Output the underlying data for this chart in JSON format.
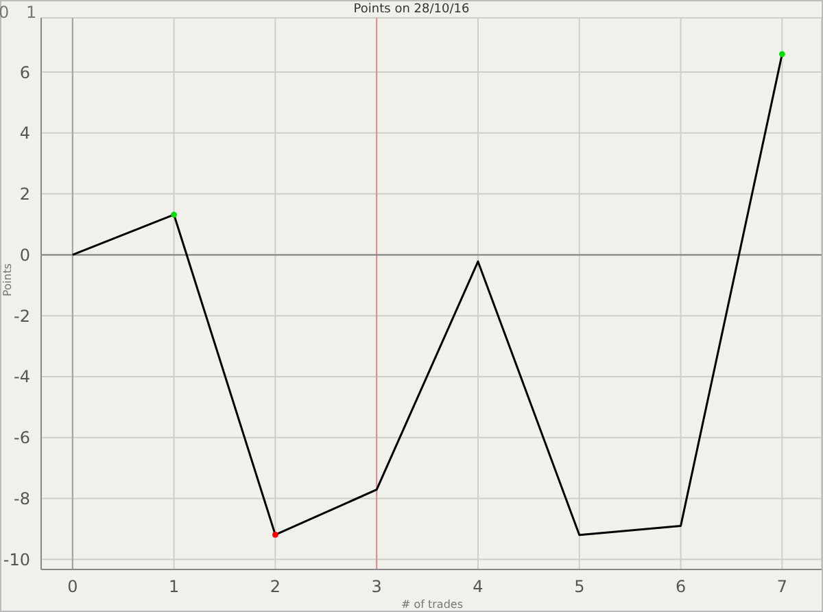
{
  "chart_data": {
    "type": "line",
    "title": "Points on 28/10/16",
    "xlabel": "# of trades",
    "ylabel": "Points",
    "annotations": [
      "0",
      "1"
    ],
    "series": [
      {
        "color": "#000000",
        "x": [
          0,
          1,
          2,
          3,
          4,
          5,
          6,
          7
        ],
        "values": [
          0,
          1.32,
          -9.19,
          -7.71,
          -0.22,
          -9.2,
          -8.9,
          6.59
        ],
        "marker": "none"
      },
      {
        "type": "scatter",
        "x": [
          1,
          2,
          7
        ],
        "values": [
          1.32,
          -9.19,
          6.59
        ],
        "colors": [
          "#00e000",
          "#ff0000",
          "#00e000"
        ],
        "marker": "circle"
      }
    ],
    "xlim": [
      -0.31,
      7.39
    ],
    "xticks": [
      0,
      1,
      2,
      3,
      4,
      5,
      6,
      7
    ],
    "ylim": [
      -10.33,
      7.78
    ],
    "yticks": [
      -10,
      -8,
      -6,
      -4,
      -2,
      0,
      2,
      4,
      6
    ],
    "ref_lines": [
      {
        "axis": "x",
        "value": 3,
        "color": "#e08a8a"
      },
      {
        "axis": "x",
        "value": 0,
        "color": "#a0a0a0"
      },
      {
        "axis": "y",
        "value": 0,
        "color": "#808080"
      }
    ],
    "grid": true
  }
}
